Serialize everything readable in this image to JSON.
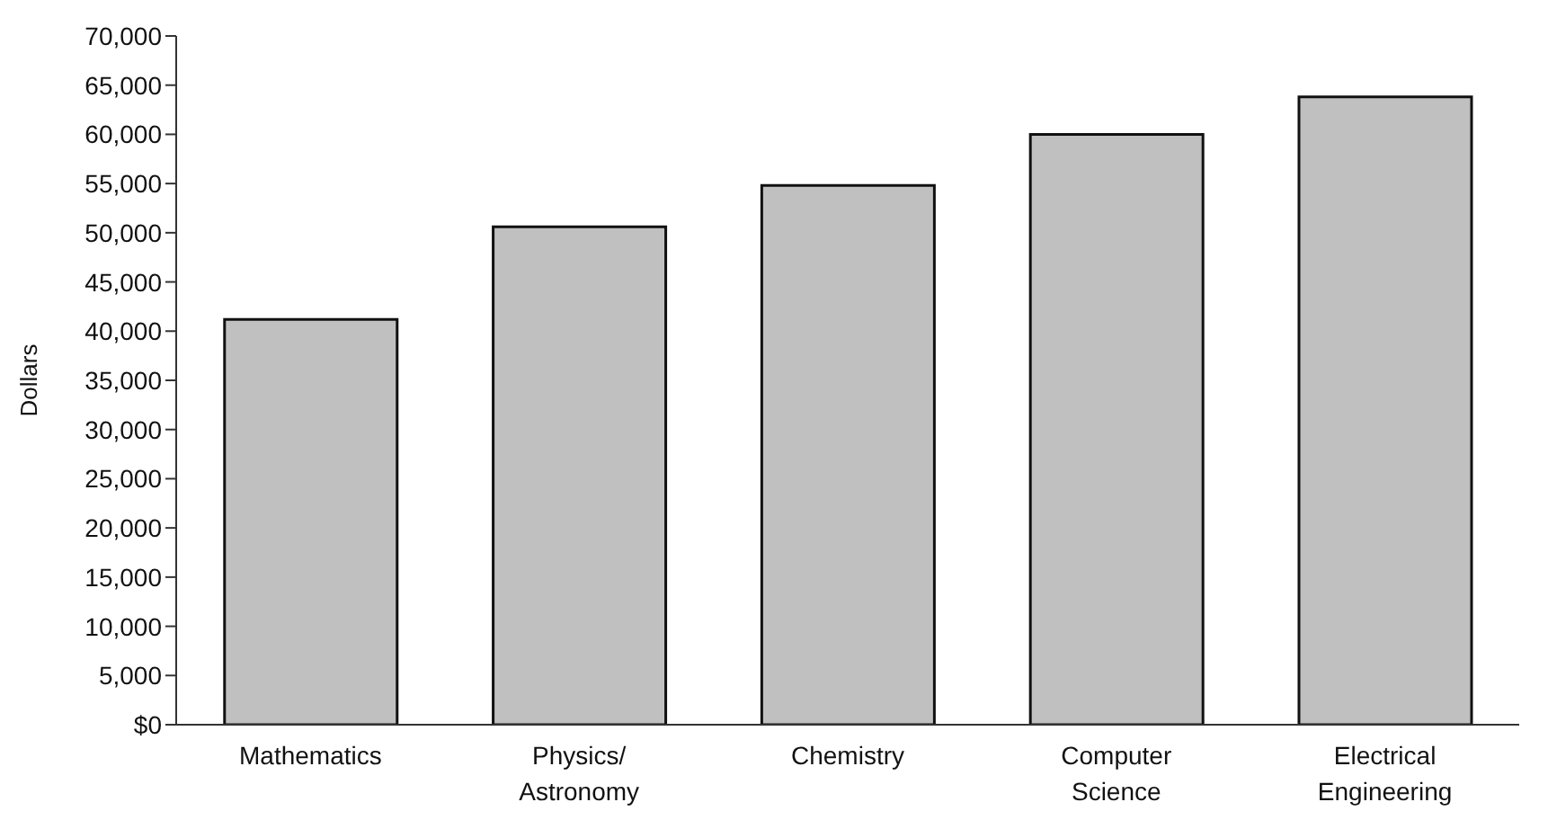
{
  "chart_data": {
    "type": "bar",
    "ylabel": "Dollars",
    "categories": [
      "Mathematics",
      "Physics/ Astronomy",
      "Chemistry",
      "Computer Science",
      "Electrical Engineering"
    ],
    "values": [
      41200,
      50600,
      54800,
      60000,
      63800
    ],
    "color": "#c0c0c0",
    "ylim": [
      0,
      70000
    ],
    "yticks": [
      {
        "value": 0,
        "label": "$0"
      },
      {
        "value": 5000,
        "label": "5,000"
      },
      {
        "value": 10000,
        "label": "10,000"
      },
      {
        "value": 15000,
        "label": "15,000"
      },
      {
        "value": 20000,
        "label": "20,000"
      },
      {
        "value": 25000,
        "label": "25,000"
      },
      {
        "value": 30000,
        "label": "30,000"
      },
      {
        "value": 35000,
        "label": "35,000"
      },
      {
        "value": 40000,
        "label": "40,000"
      },
      {
        "value": 45000,
        "label": "45,000"
      },
      {
        "value": 50000,
        "label": "50,000"
      },
      {
        "value": 55000,
        "label": "55,000"
      },
      {
        "value": 60000,
        "label": "60,000"
      },
      {
        "value": 65000,
        "label": "65,000"
      },
      {
        "value": 70000,
        "label": "70,000"
      }
    ],
    "grid": false,
    "legend": false
  }
}
